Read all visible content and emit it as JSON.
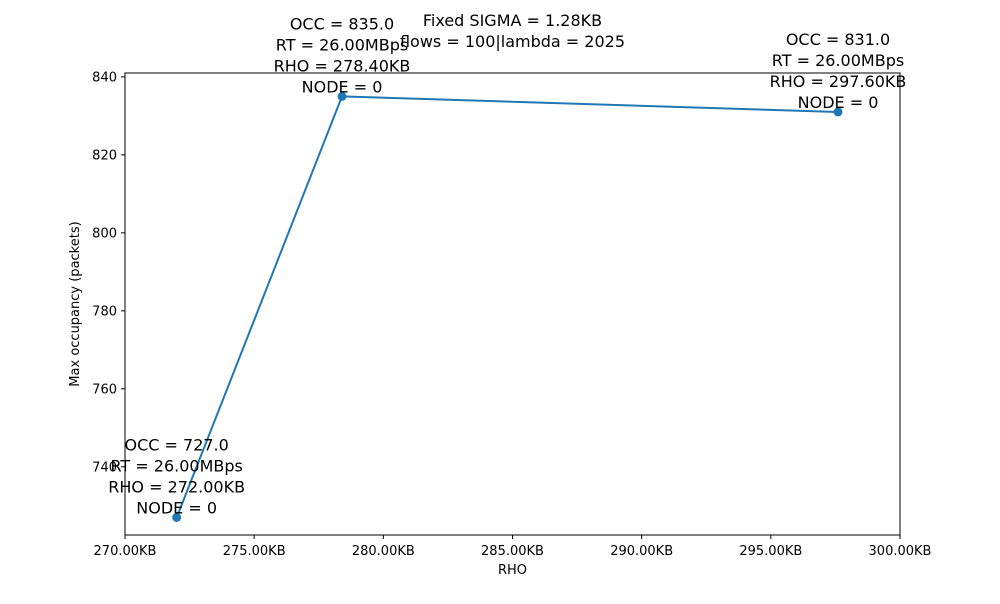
{
  "chart_data": {
    "type": "line",
    "title_lines": [
      "Fixed SIGMA = 1.28KB",
      "flows = 100|lambda = 2025"
    ],
    "xlabel": "RHO",
    "ylabel": "Max occupancy (packets)",
    "xlim": [
      270,
      300
    ],
    "ylim": [
      722.5,
      841
    ],
    "x_ticks": [
      270,
      275,
      280,
      285,
      290,
      295,
      300
    ],
    "x_tick_labels": [
      "270.00KB",
      "275.00KB",
      "280.00KB",
      "285.00KB",
      "290.00KB",
      "295.00KB",
      "300.00KB"
    ],
    "y_ticks": [
      740,
      760,
      780,
      800,
      820,
      840
    ],
    "y_tick_labels": [
      "740",
      "760",
      "780",
      "800",
      "820",
      "840"
    ],
    "grid": false,
    "legend": "none",
    "series": [
      {
        "color": "#1f77b4",
        "x": [
          272.0,
          278.4,
          297.6
        ],
        "y": [
          727.0,
          835.0,
          831.0
        ]
      }
    ],
    "annotations": [
      {
        "lines": [
          "OCC = 727.0",
          "RT = 26.00MBps",
          "RHO = 272.00KB",
          "NODE = 0"
        ]
      },
      {
        "lines": [
          "OCC = 835.0",
          "RT = 26.00MBps",
          "RHO = 278.40KB",
          "NODE = 0"
        ]
      },
      {
        "lines": [
          "OCC = 831.0",
          "RT = 26.00MBps",
          "RHO = 297.60KB",
          "NODE = 0"
        ]
      }
    ]
  }
}
